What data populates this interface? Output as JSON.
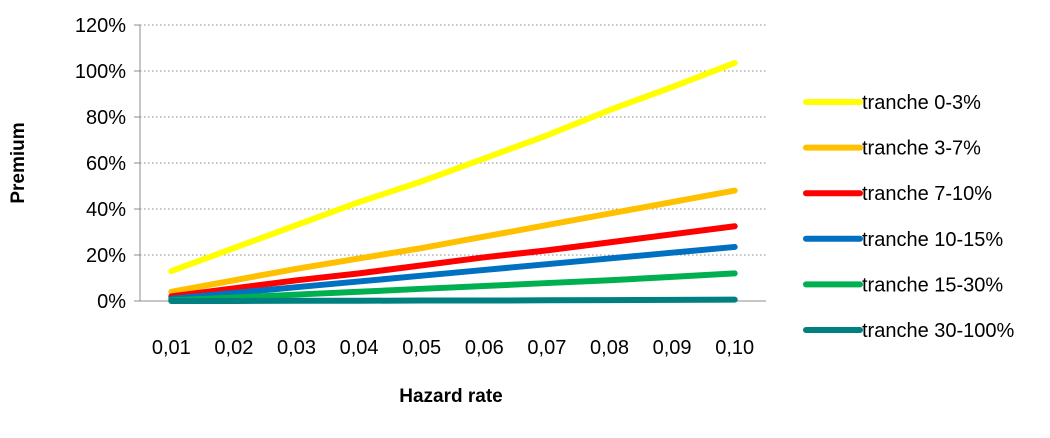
{
  "chart_data": {
    "type": "line",
    "title": "",
    "xlabel": "Hazard rate",
    "ylabel": "Premium",
    "x": [
      "0,01",
      "0,02",
      "0,03",
      "0,04",
      "0,05",
      "0,06",
      "0,07",
      "0,08",
      "0,09",
      "0,10"
    ],
    "y_ticks": [
      "0%",
      "20%",
      "40%",
      "60%",
      "80%",
      "100%",
      "120%"
    ],
    "ylim": [
      0,
      1.2
    ],
    "y_format": "percent",
    "grid": "horizontal-dotted",
    "legend_position": "right",
    "series": [
      {
        "name": "tranche 0-3%",
        "color": "#ffff00",
        "values": [
          0.13,
          0.23,
          0.33,
          0.43,
          0.52,
          0.62,
          0.72,
          0.83,
          0.93,
          1.035
        ]
      },
      {
        "name": "tranche 3-7%",
        "color": "#ffc000",
        "values": [
          0.04,
          0.09,
          0.14,
          0.185,
          0.23,
          0.28,
          0.33,
          0.38,
          0.43,
          0.48
        ]
      },
      {
        "name": "tranche 7-10%",
        "color": "#ff0000",
        "values": [
          0.02,
          0.055,
          0.09,
          0.12,
          0.155,
          0.19,
          0.22,
          0.255,
          0.29,
          0.325
        ]
      },
      {
        "name": "tranche 10-15%",
        "color": "#0070c0",
        "values": [
          0.01,
          0.035,
          0.06,
          0.085,
          0.11,
          0.135,
          0.16,
          0.185,
          0.21,
          0.235
        ]
      },
      {
        "name": "tranche 15-30%",
        "color": "#00b050",
        "values": [
          0.003,
          0.015,
          0.028,
          0.04,
          0.053,
          0.065,
          0.078,
          0.09,
          0.105,
          0.12
        ]
      },
      {
        "name": "tranche 30-100%",
        "color": "#008080",
        "values": [
          0.0,
          0.0,
          0.001,
          0.001,
          0.002,
          0.002,
          0.003,
          0.004,
          0.005,
          0.006
        ]
      }
    ]
  }
}
